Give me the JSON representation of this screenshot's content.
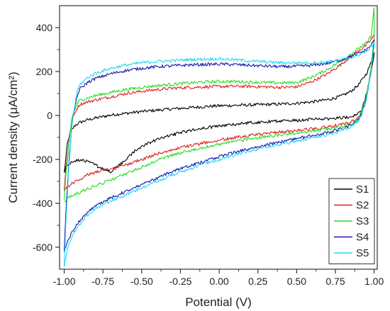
{
  "chart_data": {
    "type": "line",
    "title": "",
    "xlabel": "Potential (V)",
    "ylabel": "Current density (μA/cm²)",
    "xlim": [
      -1.03,
      1.02
    ],
    "ylim": [
      -700,
      500
    ],
    "xticks": [
      -1.0,
      -0.75,
      -0.5,
      -0.25,
      0.0,
      0.25,
      0.5,
      0.75,
      1.0
    ],
    "xtick_labels": [
      "-1.00",
      "-0.75",
      "-0.50",
      "-0.25",
      "0.00",
      "0.25",
      "0.50",
      "0.75",
      "1.00"
    ],
    "yticks": [
      -600,
      -400,
      -200,
      0,
      200,
      400
    ],
    "ytick_labels": [
      "-600",
      "-400",
      "-200",
      "0",
      "200",
      "400"
    ],
    "grid": false,
    "legend_position": "bottom-right",
    "series": [
      {
        "name": "S1",
        "color": "#000000",
        "x": [
          -1.0,
          -0.99,
          -0.98,
          -0.96,
          -0.93,
          -0.9,
          -0.85,
          -0.8,
          -0.7,
          -0.6,
          -0.5,
          -0.4,
          -0.3,
          -0.2,
          -0.1,
          0.0,
          0.1,
          0.2,
          0.3,
          0.4,
          0.5,
          0.6,
          0.7,
          0.75,
          0.8,
          0.85,
          0.9,
          0.95,
          0.98,
          1.0,
          1.0,
          0.98,
          0.96,
          0.94,
          0.92,
          0.9,
          0.85,
          0.8,
          0.7,
          0.6,
          0.5,
          0.4,
          0.3,
          0.2,
          0.1,
          0.0,
          -0.1,
          -0.2,
          -0.3,
          -0.4,
          -0.5,
          -0.55,
          -0.6,
          -0.65,
          -0.7,
          -0.75,
          -0.8,
          -0.85,
          -0.88,
          -0.92,
          -0.95,
          -0.97,
          -0.99,
          -1.0
        ],
        "y": [
          -260,
          -200,
          -130,
          -75,
          -45,
          -32,
          -20,
          -12,
          2,
          10,
          18,
          24,
          30,
          35,
          40,
          44,
          46,
          48,
          50,
          52,
          56,
          62,
          72,
          80,
          92,
          110,
          140,
          190,
          240,
          285,
          280,
          200,
          130,
          70,
          30,
          10,
          -5,
          -10,
          -15,
          -18,
          -22,
          -25,
          -28,
          -33,
          -40,
          -48,
          -58,
          -70,
          -88,
          -110,
          -140,
          -165,
          -200,
          -230,
          -255,
          -245,
          -225,
          -210,
          -200,
          -205,
          -210,
          -220,
          -235,
          -260
        ]
      },
      {
        "name": "S2",
        "color": "#e0201f",
        "x": [
          -1.0,
          -0.99,
          -0.97,
          -0.95,
          -0.92,
          -0.9,
          -0.85,
          -0.8,
          -0.7,
          -0.6,
          -0.5,
          -0.4,
          -0.3,
          -0.2,
          -0.1,
          0.0,
          0.1,
          0.2,
          0.3,
          0.4,
          0.5,
          0.6,
          0.7,
          0.8,
          0.85,
          0.9,
          0.95,
          0.98,
          1.0,
          1.0,
          0.98,
          0.95,
          0.92,
          0.9,
          0.85,
          0.8,
          0.7,
          0.6,
          0.5,
          0.4,
          0.3,
          0.2,
          0.1,
          0.0,
          -0.1,
          -0.2,
          -0.3,
          -0.4,
          -0.5,
          -0.6,
          -0.7,
          -0.75,
          -0.8,
          -0.85,
          -0.9,
          -0.95,
          -0.98,
          -1.0
        ],
        "y": [
          -340,
          -250,
          -120,
          -20,
          30,
          50,
          62,
          70,
          85,
          100,
          110,
          118,
          124,
          128,
          130,
          132,
          133,
          132,
          130,
          128,
          130,
          155,
          190,
          240,
          270,
          295,
          320,
          345,
          365,
          340,
          200,
          80,
          20,
          -10,
          -30,
          -40,
          -52,
          -60,
          -68,
          -75,
          -82,
          -90,
          -100,
          -112,
          -125,
          -140,
          -155,
          -175,
          -200,
          -225,
          -245,
          -250,
          -260,
          -270,
          -290,
          -310,
          -325,
          -340
        ]
      },
      {
        "name": "S3",
        "color": "#22dd22",
        "x": [
          -1.0,
          -0.99,
          -0.97,
          -0.95,
          -0.92,
          -0.9,
          -0.85,
          -0.8,
          -0.7,
          -0.6,
          -0.5,
          -0.4,
          -0.3,
          -0.2,
          -0.1,
          0.0,
          0.1,
          0.2,
          0.3,
          0.4,
          0.5,
          0.6,
          0.7,
          0.8,
          0.85,
          0.9,
          0.95,
          0.98,
          1.0,
          1.0,
          0.98,
          0.95,
          0.92,
          0.9,
          0.85,
          0.8,
          0.7,
          0.6,
          0.5,
          0.4,
          0.3,
          0.2,
          0.1,
          0.0,
          -0.1,
          -0.2,
          -0.3,
          -0.4,
          -0.5,
          -0.6,
          -0.7,
          -0.8,
          -0.85,
          -0.9,
          -0.95,
          -0.98,
          -1.0
        ],
        "y": [
          -390,
          -280,
          -130,
          -10,
          50,
          68,
          80,
          90,
          105,
          118,
          128,
          136,
          142,
          148,
          152,
          155,
          155,
          152,
          150,
          148,
          150,
          175,
          210,
          255,
          280,
          305,
          330,
          360,
          490,
          360,
          210,
          90,
          20,
          -15,
          -40,
          -52,
          -62,
          -70,
          -80,
          -88,
          -96,
          -106,
          -118,
          -130,
          -145,
          -162,
          -180,
          -205,
          -235,
          -265,
          -295,
          -320,
          -335,
          -350,
          -365,
          -378,
          -390
        ]
      },
      {
        "name": "S4",
        "color": "#1515b0",
        "x": [
          -1.0,
          -0.99,
          -0.97,
          -0.95,
          -0.92,
          -0.9,
          -0.85,
          -0.8,
          -0.7,
          -0.6,
          -0.5,
          -0.4,
          -0.3,
          -0.2,
          -0.1,
          0.0,
          0.1,
          0.2,
          0.3,
          0.4,
          0.5,
          0.6,
          0.7,
          0.8,
          0.85,
          0.9,
          0.95,
          0.98,
          1.0,
          1.0,
          0.98,
          0.95,
          0.92,
          0.9,
          0.85,
          0.8,
          0.7,
          0.6,
          0.5,
          0.4,
          0.3,
          0.2,
          0.1,
          0.0,
          -0.1,
          -0.2,
          -0.3,
          -0.4,
          -0.5,
          -0.6,
          -0.7,
          -0.8,
          -0.85,
          -0.9,
          -0.95,
          -0.98,
          -1.0
        ],
        "y": [
          -620,
          -450,
          -220,
          -40,
          80,
          120,
          150,
          168,
          190,
          205,
          215,
          222,
          226,
          230,
          232,
          234,
          232,
          228,
          225,
          222,
          224,
          228,
          238,
          255,
          268,
          282,
          300,
          320,
          345,
          330,
          200,
          80,
          10,
          -20,
          -45,
          -60,
          -78,
          -92,
          -105,
          -120,
          -135,
          -150,
          -168,
          -188,
          -210,
          -232,
          -255,
          -285,
          -315,
          -345,
          -375,
          -410,
          -440,
          -480,
          -530,
          -580,
          -620
        ]
      },
      {
        "name": "S5",
        "color": "#22d8f0",
        "x": [
          -1.0,
          -0.99,
          -0.97,
          -0.95,
          -0.92,
          -0.9,
          -0.85,
          -0.8,
          -0.7,
          -0.6,
          -0.5,
          -0.4,
          -0.3,
          -0.2,
          -0.1,
          0.0,
          0.1,
          0.2,
          0.3,
          0.4,
          0.5,
          0.6,
          0.7,
          0.8,
          0.85,
          0.9,
          0.95,
          0.98,
          1.0,
          1.0,
          0.98,
          0.95,
          0.92,
          0.9,
          0.85,
          0.8,
          0.7,
          0.6,
          0.5,
          0.4,
          0.3,
          0.2,
          0.1,
          0.0,
          -0.1,
          -0.2,
          -0.3,
          -0.4,
          -0.5,
          -0.6,
          -0.7,
          -0.8,
          -0.85,
          -0.9,
          -0.95,
          -0.98,
          -1.0
        ],
        "y": [
          -690,
          -500,
          -240,
          -40,
          100,
          140,
          172,
          192,
          215,
          230,
          240,
          246,
          250,
          254,
          256,
          258,
          254,
          248,
          244,
          240,
          240,
          240,
          244,
          255,
          264,
          276,
          292,
          312,
          335,
          320,
          195,
          75,
          5,
          -25,
          -50,
          -68,
          -88,
          -102,
          -116,
          -130,
          -145,
          -162,
          -180,
          -200,
          -222,
          -245,
          -270,
          -300,
          -330,
          -360,
          -390,
          -425,
          -455,
          -495,
          -550,
          -610,
          -690
        ]
      }
    ]
  }
}
